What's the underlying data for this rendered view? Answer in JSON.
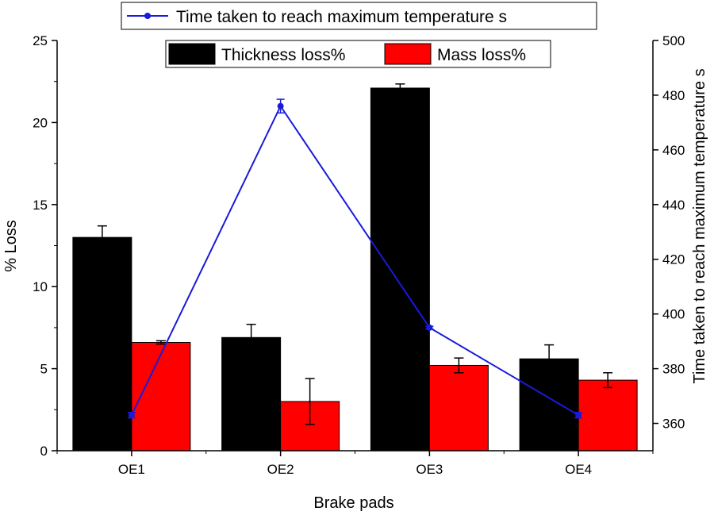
{
  "chart_data": {
    "type": "bar",
    "categories": [
      "OE1",
      "OE2",
      "OE3",
      "OE4"
    ],
    "xlabel": "Brake pads",
    "ylabel": "% Loss",
    "y2label": "Time taken to reach maximum temperature s",
    "ylim": [
      0,
      25
    ],
    "y2lim": [
      350,
      500
    ],
    "yticks": [
      0,
      5,
      10,
      15,
      20,
      25
    ],
    "y2ticks": [
      360,
      380,
      400,
      420,
      440,
      460,
      480,
      500
    ],
    "legend_position": "top",
    "series": [
      {
        "name": "Thickness loss%",
        "kind": "bar",
        "axis": "left",
        "color": "#000000",
        "values": [
          13.0,
          6.9,
          22.1,
          5.6
        ],
        "errors": [
          0.7,
          0.8,
          0.25,
          0.85
        ]
      },
      {
        "name": "Mass loss%",
        "kind": "bar",
        "axis": "left",
        "color": "#ff0000",
        "values": [
          6.6,
          3.0,
          5.2,
          4.3
        ],
        "errors": [
          0.1,
          1.4,
          0.45,
          0.45
        ]
      },
      {
        "name": "Time taken to reach maximum temperature s",
        "kind": "line",
        "axis": "right",
        "color": "#1a1adb",
        "values": [
          363,
          476,
          395,
          363
        ],
        "errors": [
          1,
          2.5,
          0.5,
          1
        ]
      }
    ]
  }
}
